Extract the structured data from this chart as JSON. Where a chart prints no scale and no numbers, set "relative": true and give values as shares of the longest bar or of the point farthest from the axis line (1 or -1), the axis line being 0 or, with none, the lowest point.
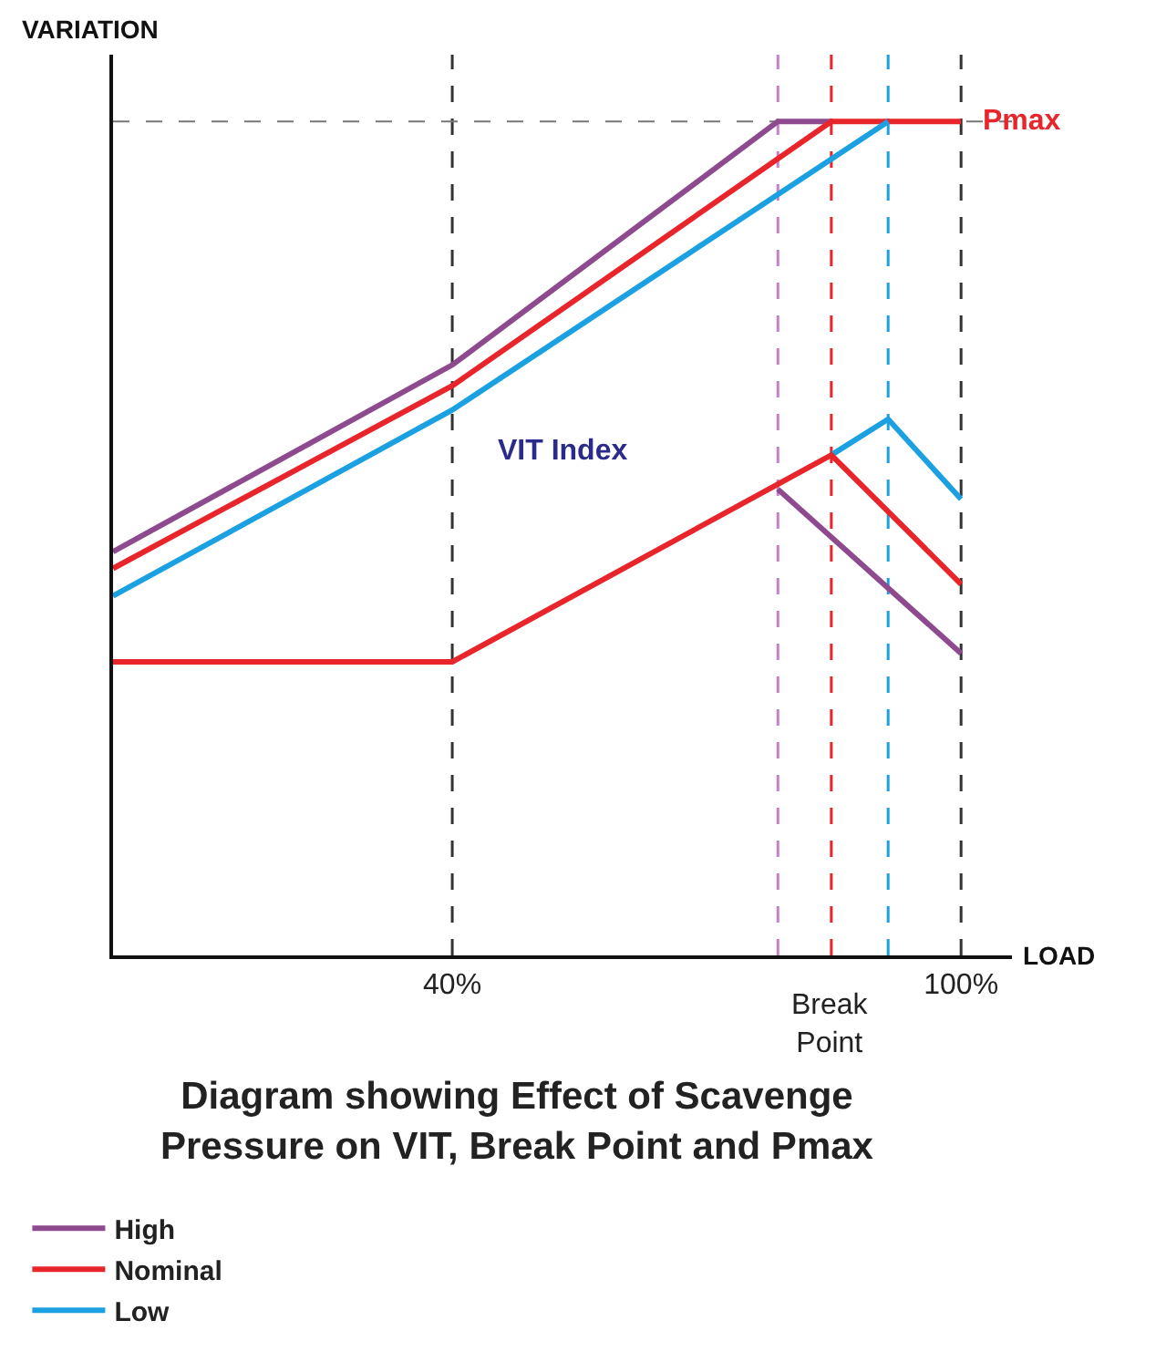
{
  "chart_data": {
    "type": "line",
    "title": "Diagram showing Effect of Scavenge Pressure on VIT, Break Point and Pmax",
    "xlabel": "LOAD",
    "ylabel": "VARIATION",
    "relative": true,
    "xlim": [
      0,
      106
    ],
    "xticks": [
      {
        "value": 40,
        "label": "40%"
      },
      {
        "value": 100,
        "label": "100%"
      }
    ],
    "grid": false,
    "legend": "bottom left",
    "marker": "none",
    "line_style": "solid",
    "series": [
      {
        "name": "High",
        "color": "#8e4a8e",
        "x": [
          0,
          40,
          78.4,
          84.7
        ],
        "values": [
          0.484,
          0.708,
          1,
          1
        ]
      },
      {
        "name": "Nominal",
        "color": "#e8252a",
        "x": [
          0,
          40,
          84.7,
          100
        ],
        "values": [
          0.464,
          0.683,
          1,
          1
        ]
      },
      {
        "name": "Low",
        "color": "#1ba1e2",
        "x": [
          0,
          40,
          91.4
        ],
        "values": [
          0.431,
          0.654,
          1
        ]
      },
      {
        "color": "#8e4a8e",
        "x": [
          78.4,
          100
        ],
        "values": [
          0.559,
          0.362
        ]
      },
      {
        "color": "#1ba1e2",
        "x": [
          84.7,
          91.4,
          100
        ],
        "values": [
          0.6,
          0.643,
          0.547
        ]
      },
      {
        "color": "#e8252a",
        "x": [
          0,
          40,
          84.7,
          100
        ],
        "values": [
          0.352,
          0.352,
          0.6,
          0.445
        ]
      }
    ],
    "ref_lines": [
      {
        "axis": "x",
        "value": 40,
        "color": "#333333",
        "line_style": "dashed"
      },
      {
        "axis": "x",
        "value": 78.4,
        "color": "#c77fc7",
        "line_style": "dashed"
      },
      {
        "axis": "x",
        "value": 84.7,
        "color": "#e8252a",
        "line_style": "dashed",
        "label": "Break Point"
      },
      {
        "axis": "x",
        "value": 91.4,
        "color": "#1ba1e2",
        "line_style": "dashed"
      },
      {
        "axis": "x",
        "value": 100,
        "color": "#333333",
        "line_style": "dashed"
      },
      {
        "axis": "y",
        "value": 1,
        "color": "#777777",
        "line_style": "dashed"
      }
    ],
    "annotations": [
      {
        "text": "Pmax",
        "x": 100,
        "y": 1
      },
      "VIT Index"
    ]
  }
}
